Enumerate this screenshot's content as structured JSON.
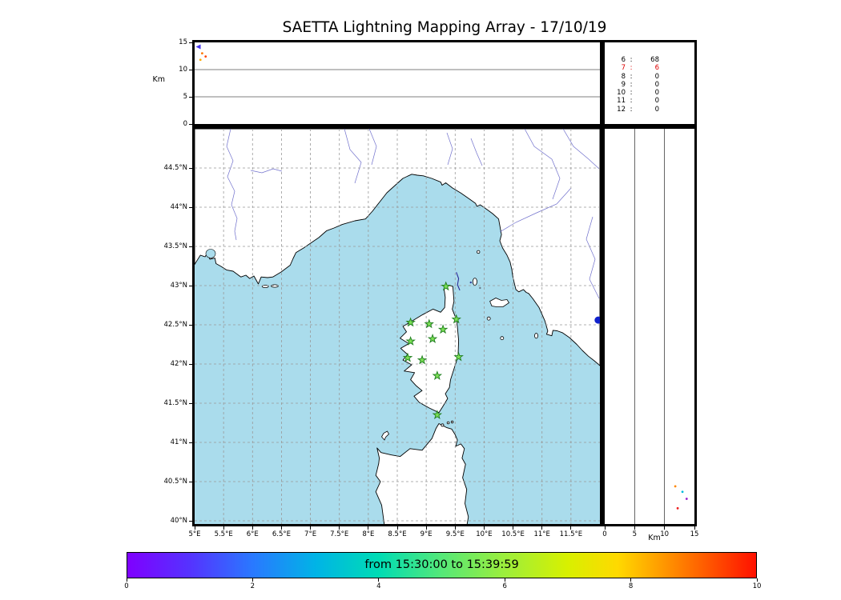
{
  "title": "SAETTA Lightning Mapping Array - 17/10/19",
  "labels": {
    "km_top": "Km",
    "km_right": "Km"
  },
  "chart_data": {
    "type": "scatter",
    "title": "SAETTA Lightning Mapping Array - 17/10/19",
    "panels": {
      "top": {
        "x": "longitude",
        "y": "altitude_km",
        "y_label": "Km",
        "y_range": [
          0,
          15
        ],
        "y_ticks": [
          0,
          5,
          10,
          15
        ]
      },
      "map": {
        "x": "longitude",
        "y": "latitude",
        "lon_range": [
          5,
          12
        ],
        "lat_range": [
          39.96,
          45.0
        ],
        "x_tick_vals": [
          5,
          5.5,
          6,
          6.5,
          7,
          7.5,
          8,
          8.5,
          9,
          9.5,
          10,
          10.5,
          11,
          11.5
        ],
        "x_tick_labels": [
          "5°E",
          "5.5°E",
          "6°E",
          "6.5°E",
          "7°E",
          "7.5°E",
          "8°E",
          "8.5°E",
          "9°E",
          "9.5°E",
          "10°E",
          "10.5°E",
          "11°E",
          "11.5°E"
        ],
        "y_tick_vals": [
          40,
          40.5,
          41,
          41.5,
          42,
          42.5,
          43,
          43.5,
          44,
          44.5
        ],
        "y_tick_labels": [
          "40°N",
          "40.5°N",
          "41°N",
          "41.5°N",
          "42°N",
          "42.5°N",
          "43°N",
          "43.5°N",
          "44°N",
          "44.5°N"
        ],
        "grid": "dashed"
      },
      "right": {
        "x": "altitude_km",
        "y": "latitude",
        "x_label": "Km",
        "x_range": [
          0,
          15
        ],
        "x_ticks": [
          0,
          5,
          10,
          15
        ]
      }
    },
    "altitude_ticks": [
      0,
      5,
      10,
      15
    ],
    "altitude_gridlines": [
      5,
      10
    ],
    "sea_color": "#aadcec",
    "land_color": "#ffffff",
    "station_marker_color": "#7ce055",
    "stations_lonlat": [
      [
        9.34,
        42.99
      ],
      [
        8.73,
        42.53
      ],
      [
        9.05,
        42.51
      ],
      [
        9.52,
        42.57
      ],
      [
        9.29,
        42.44
      ],
      [
        8.73,
        42.29
      ],
      [
        9.11,
        42.32
      ],
      [
        8.68,
        42.08
      ],
      [
        8.93,
        42.05
      ],
      [
        9.56,
        42.09
      ],
      [
        9.19,
        41.85
      ],
      [
        9.19,
        41.35
      ]
    ],
    "station_counts": [
      {
        "n": "6",
        "count": "68",
        "highlight": false
      },
      {
        "n": "7",
        "count": "6",
        "highlight": true
      },
      {
        "n": "8",
        "count": "0",
        "highlight": false
      },
      {
        "n": "9",
        "count": "0",
        "highlight": false
      },
      {
        "n": "10",
        "count": "0",
        "highlight": false
      },
      {
        "n": "11",
        "count": "0",
        "highlight": false
      },
      {
        "n": "12",
        "count": "0",
        "highlight": false
      }
    ],
    "highlight_color": "#dd0000",
    "flash_trace_lonlat": [
      [
        9.52,
        43.17
      ],
      [
        9.56,
        43.09
      ],
      [
        9.54,
        43.01
      ],
      [
        9.58,
        42.94
      ]
    ],
    "flash_color": "#2a2a99",
    "map_points": [
      {
        "lon": 11.97,
        "lat": 42.56,
        "r": 4.5,
        "color": "#1122cc"
      },
      {
        "lon": 9.77,
        "lat": 43.04,
        "r": 1.2,
        "color": "#334499"
      },
      {
        "lon": 9.93,
        "lat": 42.97,
        "r": 1.2,
        "color": "#667788"
      }
    ],
    "top_panel_points": [
      {
        "lon": 5.06,
        "alt": 14.2,
        "color": "#4433ee",
        "marker": "triangle-left"
      },
      {
        "lon": 5.13,
        "alt": 13.0,
        "color": "#ff7700",
        "marker": "dot"
      },
      {
        "lon": 5.19,
        "alt": 12.4,
        "color": "#ff4400",
        "marker": "dot"
      },
      {
        "lon": 5.1,
        "alt": 11.8,
        "color": "#ffaa00",
        "marker": "dot"
      }
    ],
    "right_panel_points": [
      {
        "alt": 11.8,
        "lat": 40.44,
        "color": "#ff8800"
      },
      {
        "alt": 13.0,
        "lat": 40.37,
        "color": "#00bbdd"
      },
      {
        "alt": 13.7,
        "lat": 40.28,
        "color": "#9922cc"
      },
      {
        "alt": 12.2,
        "lat": 40.16,
        "color": "#ee2222"
      }
    ],
    "colorbar": {
      "label": "from 15:30:00 to 15:39:59",
      "range": [
        0,
        10
      ],
      "tick_vals": [
        0,
        2,
        4,
        6,
        8,
        10
      ],
      "tick_labels": [
        "0",
        "2",
        "4",
        "6",
        "8",
        "10"
      ],
      "colormap": "rainbow"
    }
  }
}
